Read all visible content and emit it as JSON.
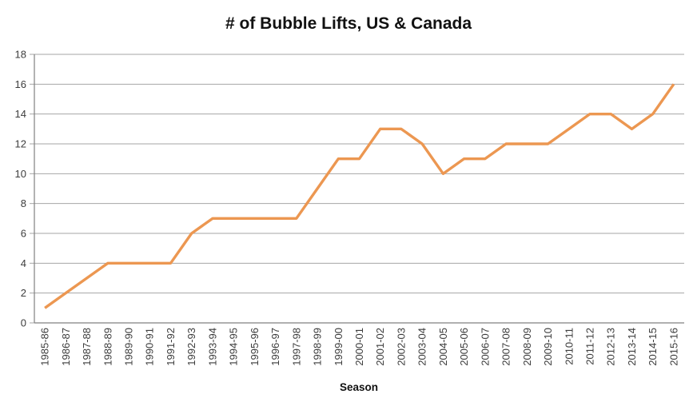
{
  "title": "# of Bubble Lifts, US & Canada",
  "chart_data": {
    "type": "line",
    "title": "# of Bubble Lifts, US & Canada",
    "xlabel": "Season",
    "ylabel": "",
    "categories": [
      "1985-86",
      "1986-87",
      "1987-88",
      "1988-89",
      "1989-90",
      "1990-91",
      "1991-92",
      "1992-93",
      "1993-94",
      "1994-95",
      "1995-96",
      "1996-97",
      "1997-98",
      "1998-99",
      "1999-00",
      "2000-01",
      "2001-02",
      "2002-03",
      "2003-04",
      "2004-05",
      "2005-06",
      "2006-07",
      "2007-08",
      "2008-09",
      "2009-10",
      "2010-11",
      "2011-12",
      "2012-13",
      "2013-14",
      "2014-15",
      "2015-16"
    ],
    "values": [
      1,
      2,
      3,
      4,
      4,
      4,
      4,
      6,
      7,
      7,
      7,
      7,
      7,
      9,
      11,
      11,
      13,
      13,
      12,
      10,
      11,
      11,
      12,
      12,
      12,
      13,
      14,
      14,
      13,
      14,
      16
    ],
    "ylim": [
      0,
      18
    ],
    "ytick_step": 2,
    "grid": "horizontal-only",
    "legend": "none",
    "series_name": "# of Bubble Lifts",
    "colors": {
      "line": "#EC9751",
      "gridline": "#A6A6A6",
      "axis": "#808080",
      "tick_label": "#3c3c3c",
      "background": "#ffffff"
    }
  }
}
